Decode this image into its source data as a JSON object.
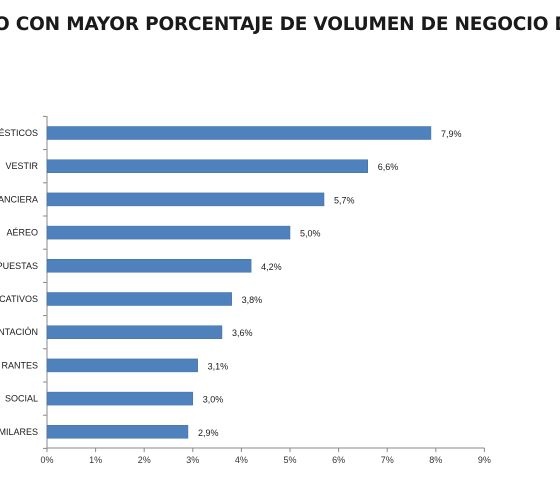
{
  "title": "O CON MAYOR PORCENTAJE DE VOLUMEN DE NEGOCIO DE",
  "colors": {
    "bar": "#4f81bd",
    "bar_edge": "#3d6ea5",
    "axis": "#888888",
    "text": "#1a1a1a"
  },
  "chart_data": {
    "type": "bar",
    "orientation": "horizontal",
    "categories": [
      "ÉSTICOS",
      "VESTIR",
      "ANCIERA",
      "AÉREO",
      "PUESTAS",
      "CATIVOS",
      "NTACIÓN",
      "RANTES",
      "SOCIAL",
      "MILARES"
    ],
    "values": [
      7.9,
      6.6,
      5.7,
      5.0,
      4.2,
      3.8,
      3.6,
      3.1,
      3.0,
      2.9
    ],
    "value_labels": [
      "7,9%",
      "6,6%",
      "5,7%",
      "5,0%",
      "4,2%",
      "3,8%",
      "3,6%",
      "3,1%",
      "3,0%",
      "2,9%"
    ],
    "xlim": [
      0,
      9
    ],
    "x_ticks": [
      "0%",
      "1%",
      "2%",
      "3%",
      "4%",
      "5%",
      "6%",
      "7%",
      "8%",
      "9%"
    ],
    "grid": false,
    "xlabel": "",
    "ylabel": ""
  }
}
